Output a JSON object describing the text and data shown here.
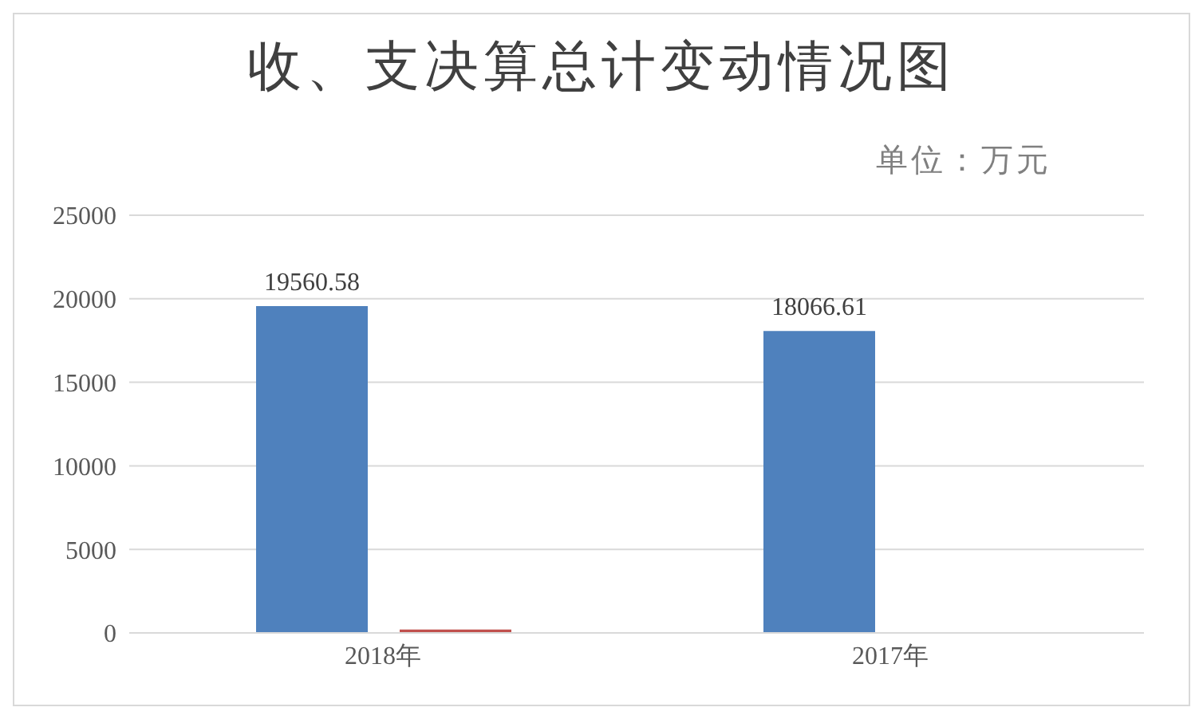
{
  "chart_data": {
    "type": "bar",
    "title": "收、支决算总计变动情况图",
    "subtitle": "单位：万元",
    "categories": [
      "2018年",
      "2017年"
    ],
    "series": [
      {
        "color": "#4f81bd",
        "values": [
          19560.58,
          18066.61
        ],
        "value_labels": [
          "19560.58",
          "18066.61"
        ]
      },
      {
        "color": "#c0504d",
        "values": [
          200,
          0
        ]
      }
    ],
    "ylim": [
      0,
      25000
    ],
    "yticks": [
      0,
      5000,
      10000,
      15000,
      20000,
      25000
    ],
    "grid": "y",
    "legend": false
  }
}
